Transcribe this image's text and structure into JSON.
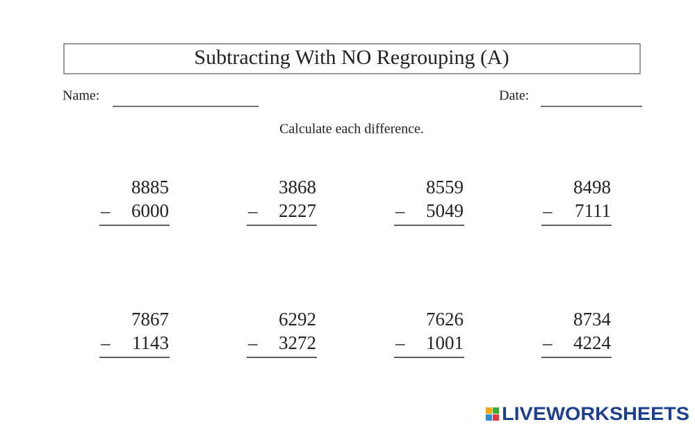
{
  "header": {
    "title": "Subtracting With NO Regrouping (A)"
  },
  "fields": {
    "name": "Name:",
    "date": "Date:"
  },
  "instruction": "Calculate each difference.",
  "operator": "–",
  "problems": [
    [
      {
        "top": "8885",
        "bottom": "6000"
      },
      {
        "top": "3868",
        "bottom": "2227"
      },
      {
        "top": "8559",
        "bottom": "5049"
      },
      {
        "top": "8498",
        "bottom": "7111"
      }
    ],
    [
      {
        "top": "7867",
        "bottom": "1143"
      },
      {
        "top": "6292",
        "bottom": "3272"
      },
      {
        "top": "7626",
        "bottom": "1001"
      },
      {
        "top": "8734",
        "bottom": "4224"
      }
    ]
  ],
  "logo": "LIVEWORKSHEETS"
}
